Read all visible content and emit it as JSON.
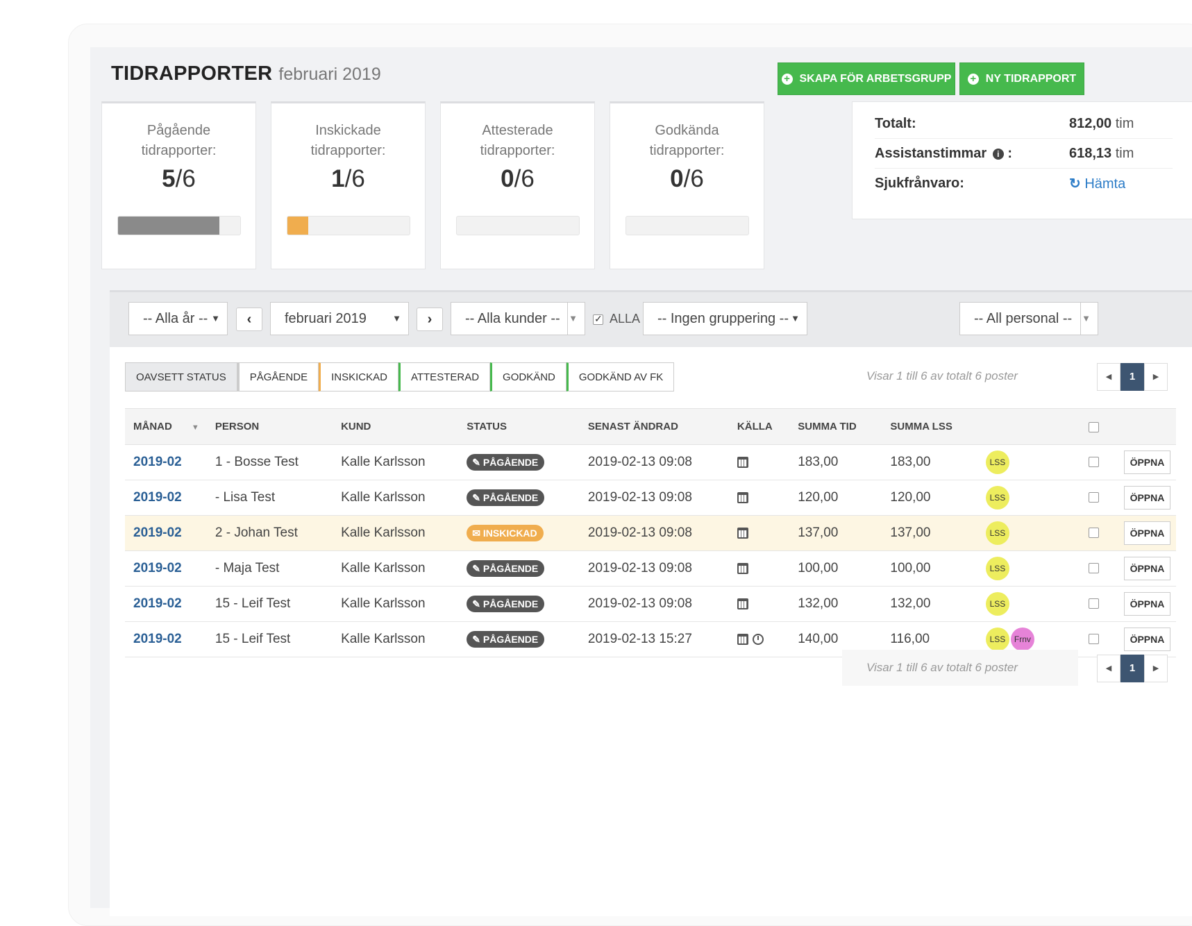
{
  "header": {
    "title": "TIDRAPPORTER",
    "subtitle": "februari 2019"
  },
  "actions": {
    "create_group": "SKAPA FÖR ARBETSGRUPP",
    "new_report": "NY TIDRAPPORT",
    "plus_icon": "plus-circle-icon"
  },
  "stats": [
    {
      "label1": "Pågående",
      "label2": "tidrapporter:",
      "count": "5",
      "total": "/6",
      "progress": 0.83,
      "color": "#8a8a8a"
    },
    {
      "label1": "Inskickade",
      "label2": "tidrapporter:",
      "count": "1",
      "total": "/6",
      "progress": 0.17,
      "color": "#f0ad4e"
    },
    {
      "label1": "Attesterade",
      "label2": "tidrapporter:",
      "count": "0",
      "total": "/6",
      "progress": 0,
      "color": "#46b94d"
    },
    {
      "label1": "Godkända",
      "label2": "tidrapporter:",
      "count": "0",
      "total": "/6",
      "progress": 0,
      "color": "#46b94d"
    }
  ],
  "totals": {
    "total_label": "Totalt:",
    "total_value": "812,00",
    "total_unit": "tim",
    "assist_label": "Assistanstimmar",
    "assist_suffix": ":",
    "assist_value": "618,13",
    "assist_unit": "tim",
    "sick_label": "Sjukfrånvaro:",
    "sick_link": "Hämta"
  },
  "filters": {
    "year": "-- Alla år --",
    "month": "februari 2019",
    "customer": "-- Alla kunder --",
    "all_label": "ALLA",
    "all_checked": true,
    "grouping": "-- Ingen gruppering --",
    "personnel": "-- All personal --"
  },
  "status_tabs": [
    {
      "label": "OAVSETT STATUS",
      "color": "#cccccc"
    },
    {
      "label": "PÅGÅENDE",
      "color": "#cccccc"
    },
    {
      "label": "INSKICKAD",
      "color": "#f0ad4e"
    },
    {
      "label": "ATTESTERAD",
      "color": "#46b94d"
    },
    {
      "label": "GODKÄND",
      "color": "#46b94d"
    },
    {
      "label": "GODKÄND AV FK",
      "color": "#46b94d"
    }
  ],
  "pagination": {
    "info": "Visar 1 till 6 av totalt 6 poster",
    "page": "1"
  },
  "table": {
    "columns": [
      "MÅNAD",
      "PERSON",
      "KUND",
      "STATUS",
      "SENAST ÄNDRAD",
      "KÄLLA",
      "SUMMA TID",
      "SUMMA LSS"
    ],
    "open_label": "ÖPPNA",
    "rows": [
      {
        "month": "2019-02",
        "person": "1 - Bosse Test",
        "customer": "Kalle Karlsson",
        "status": "PÅGÅENDE",
        "status_type": "ongoing",
        "changed": "2019-02-13 09:08",
        "source_icons": [
          "calendar-icon"
        ],
        "sum_time": "183,00",
        "sum_lss": "183,00",
        "tags": [
          "LSS"
        ],
        "highlight": false
      },
      {
        "month": "2019-02",
        "person": "- Lisa Test",
        "customer": "Kalle Karlsson",
        "status": "PÅGÅENDE",
        "status_type": "ongoing",
        "changed": "2019-02-13 09:08",
        "source_icons": [
          "calendar-icon"
        ],
        "sum_time": "120,00",
        "sum_lss": "120,00",
        "tags": [
          "LSS"
        ],
        "highlight": false
      },
      {
        "month": "2019-02",
        "person": "2 - Johan Test",
        "customer": "Kalle Karlsson",
        "status": "INSKICKAD",
        "status_type": "submitted",
        "changed": "2019-02-13 09:08",
        "source_icons": [
          "calendar-icon"
        ],
        "sum_time": "137,00",
        "sum_lss": "137,00",
        "tags": [
          "LSS"
        ],
        "highlight": true
      },
      {
        "month": "2019-02",
        "person": "- Maja Test",
        "customer": "Kalle Karlsson",
        "status": "PÅGÅENDE",
        "status_type": "ongoing",
        "changed": "2019-02-13 09:08",
        "source_icons": [
          "calendar-icon"
        ],
        "sum_time": "100,00",
        "sum_lss": "100,00",
        "tags": [
          "LSS"
        ],
        "highlight": false
      },
      {
        "month": "2019-02",
        "person": "15 - Leif Test",
        "customer": "Kalle Karlsson",
        "status": "PÅGÅENDE",
        "status_type": "ongoing",
        "changed": "2019-02-13 09:08",
        "source_icons": [
          "calendar-icon"
        ],
        "sum_time": "132,00",
        "sum_lss": "132,00",
        "tags": [
          "LSS"
        ],
        "highlight": false
      },
      {
        "month": "2019-02",
        "person": "15 - Leif Test",
        "customer": "Kalle Karlsson",
        "status": "PÅGÅENDE",
        "status_type": "ongoing",
        "changed": "2019-02-13 15:27",
        "source_icons": [
          "calendar-icon",
          "clock-icon"
        ],
        "sum_time": "140,00",
        "sum_lss": "116,00",
        "tags": [
          "LSS",
          "Frnv"
        ],
        "highlight": false
      }
    ]
  },
  "colors": {
    "accent_green": "#46b94d",
    "link_blue": "#2a5f95",
    "pager_active": "#3d5571",
    "submitted_orange": "#f0ad4e",
    "highlight_row": "#fdf6e3"
  }
}
